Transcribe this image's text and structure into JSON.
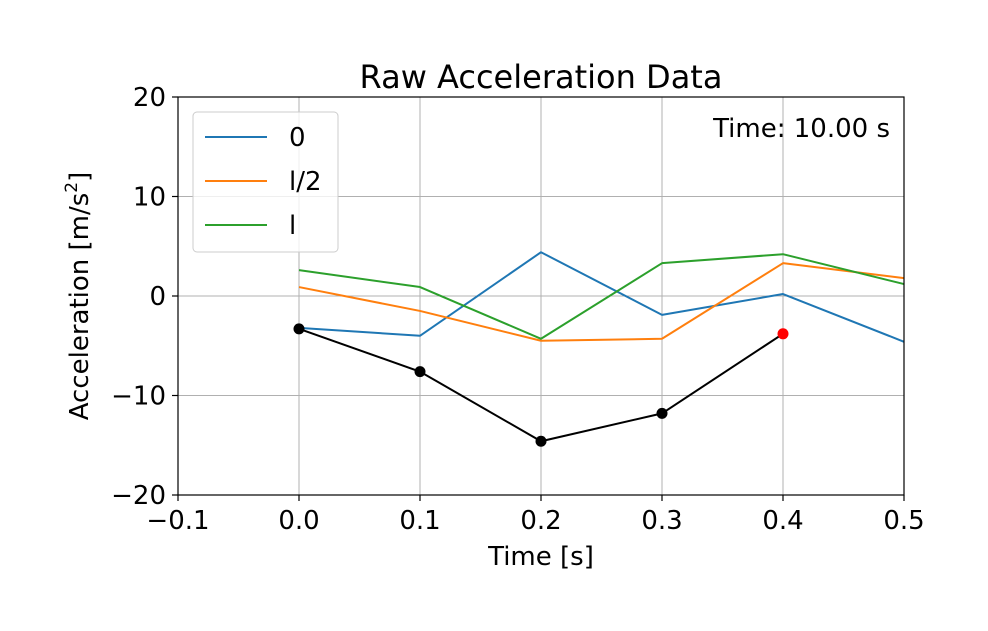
{
  "chart_data": {
    "type": "line",
    "title": "Raw Acceleration Data",
    "xlabel": "Time [s]",
    "ylabel_main": "Acceleration [m/s",
    "ylabel_sup": "2",
    "ylabel_close": "]",
    "annotation": "Time: 10.00 s",
    "xlim": [
      -0.1,
      0.5
    ],
    "ylim": [
      -20,
      20
    ],
    "xticks": [
      -0.1,
      0.0,
      0.1,
      0.2,
      0.3,
      0.4,
      0.5
    ],
    "xtick_labels": [
      "−0.1",
      "0.0",
      "0.1",
      "0.2",
      "0.3",
      "0.4",
      "0.5"
    ],
    "yticks": [
      -20,
      -10,
      0,
      10,
      20
    ],
    "ytick_labels": [
      "−20",
      "−10",
      "0",
      "10",
      "20"
    ],
    "grid": true,
    "legend_position": "upper-left",
    "series": [
      {
        "name": "0",
        "color": "#1f77b4",
        "x": [
          0.0,
          0.1,
          0.2,
          0.3,
          0.4,
          0.5
        ],
        "y": [
          -3.2,
          -4.0,
          4.4,
          -1.9,
          0.2,
          -4.6
        ]
      },
      {
        "name": "l/2",
        "color": "#ff7f0e",
        "x": [
          0.0,
          0.1,
          0.2,
          0.3,
          0.4,
          0.5
        ],
        "y": [
          0.9,
          -1.5,
          -4.5,
          -4.3,
          3.3,
          1.8
        ]
      },
      {
        "name": "l",
        "color": "#2ca02c",
        "x": [
          0.0,
          0.1,
          0.2,
          0.3,
          0.4,
          0.5
        ],
        "y": [
          2.6,
          0.9,
          -4.3,
          3.3,
          4.2,
          1.2
        ]
      }
    ],
    "trace": {
      "color": "#000000",
      "current_point_color": "#ff0000",
      "x": [
        0.0,
        0.1,
        0.2,
        0.3,
        0.4
      ],
      "y": [
        -3.3,
        -7.6,
        -14.6,
        -11.8,
        -3.8
      ]
    }
  }
}
